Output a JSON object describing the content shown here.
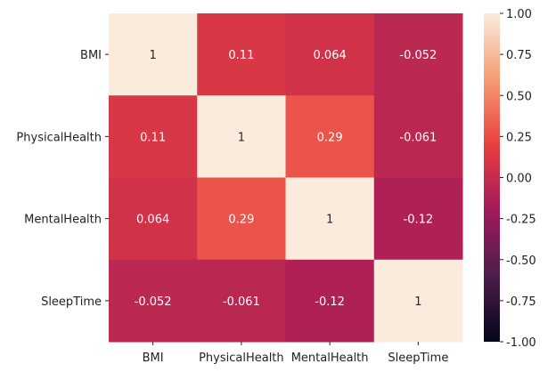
{
  "chart_data": {
    "type": "heatmap",
    "title": "",
    "xlabel": "",
    "ylabel": "",
    "rows": [
      "BMI",
      "PhysicalHealth",
      "MentalHealth",
      "SleepTime"
    ],
    "columns": [
      "BMI",
      "PhysicalHealth",
      "MentalHealth",
      "SleepTime"
    ],
    "values": [
      [
        1,
        0.11,
        0.064,
        -0.052
      ],
      [
        0.11,
        1,
        0.29,
        -0.061
      ],
      [
        0.064,
        0.29,
        1,
        -0.12
      ],
      [
        -0.052,
        -0.061,
        -0.12,
        1
      ]
    ],
    "value_labels": [
      [
        "1",
        "0.11",
        "0.064",
        "-0.052"
      ],
      [
        "0.11",
        "1",
        "0.29",
        "-0.061"
      ],
      [
        "0.064",
        "0.29",
        "1",
        "-0.12"
      ],
      [
        "-0.052",
        "-0.061",
        "-0.12",
        "1"
      ]
    ],
    "colorbar": {
      "vmin": -1,
      "vmax": 1,
      "colormap": "rocket",
      "ticks": [
        "1.00",
        "0.75",
        "0.50",
        "0.25",
        "0.00",
        "-0.25",
        "-0.50",
        "-0.75",
        "-1.00"
      ]
    },
    "colormap_stops": [
      "#03051a",
      "#4c1d4b",
      "#a11a5b",
      "#e83f3f",
      "#f69c73",
      "#faebdd"
    ]
  }
}
